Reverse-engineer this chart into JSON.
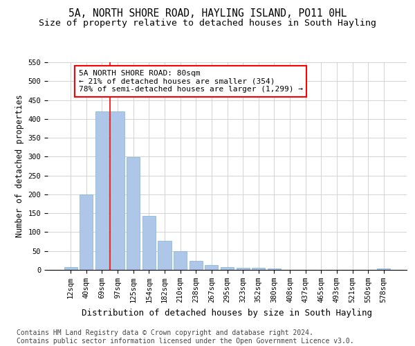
{
  "title1": "5A, NORTH SHORE ROAD, HAYLING ISLAND, PO11 0HL",
  "title2": "Size of property relative to detached houses in South Hayling",
  "xlabel": "Distribution of detached houses by size in South Hayling",
  "ylabel": "Number of detached properties",
  "categories": [
    "12sqm",
    "40sqm",
    "69sqm",
    "97sqm",
    "125sqm",
    "154sqm",
    "182sqm",
    "210sqm",
    "238sqm",
    "267sqm",
    "295sqm",
    "323sqm",
    "352sqm",
    "380sqm",
    "408sqm",
    "437sqm",
    "465sqm",
    "493sqm",
    "521sqm",
    "550sqm",
    "578sqm"
  ],
  "values": [
    8,
    200,
    420,
    420,
    298,
    143,
    77,
    49,
    24,
    12,
    8,
    6,
    6,
    3,
    0,
    0,
    0,
    0,
    0,
    0,
    3
  ],
  "bar_color": "#aec6e8",
  "bar_edge_color": "#7ab3d6",
  "red_line_x": 2.5,
  "annotation_text": "5A NORTH SHORE ROAD: 80sqm\n← 21% of detached houses are smaller (354)\n78% of semi-detached houses are larger (1,299) →",
  "annotation_box_color": "white",
  "annotation_box_edge_color": "red",
  "ylim": [
    0,
    550
  ],
  "yticks": [
    0,
    50,
    100,
    150,
    200,
    250,
    300,
    350,
    400,
    450,
    500,
    550
  ],
  "footnote": "Contains HM Land Registry data © Crown copyright and database right 2024.\nContains public sector information licensed under the Open Government Licence v3.0.",
  "title1_fontsize": 10.5,
  "title2_fontsize": 9.5,
  "xlabel_fontsize": 9,
  "ylabel_fontsize": 8.5,
  "tick_fontsize": 7.5,
  "annotation_fontsize": 8,
  "footnote_fontsize": 7
}
